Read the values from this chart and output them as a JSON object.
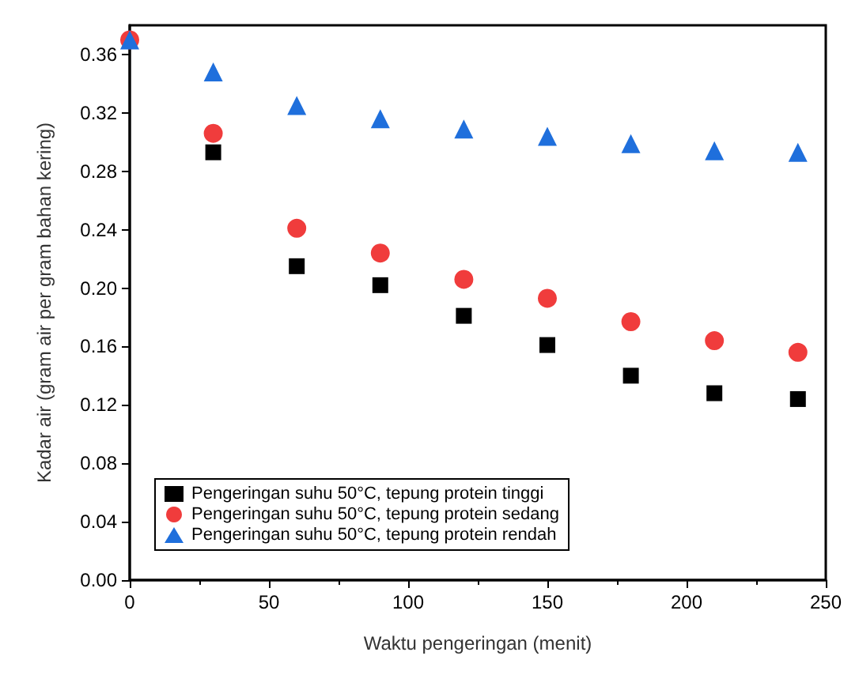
{
  "chart_data": {
    "type": "scatter",
    "xlabel": "Waktu pengeringan (menit)",
    "ylabel": "Kadar air (gram air per gram bahan kering)",
    "x": [
      0,
      30,
      60,
      90,
      120,
      150,
      180,
      210,
      240
    ],
    "series": [
      {
        "name": "Pengeringan suhu 50°C, tepung protein tinggi",
        "color": "#000000",
        "marker": "square",
        "values": [
          null,
          0.293,
          0.215,
          0.202,
          0.181,
          0.161,
          0.14,
          0.128,
          0.124
        ]
      },
      {
        "name": "Pengeringan suhu 50°C, tepung protein sedang",
        "color": "#f03c3c",
        "marker": "circle",
        "values": [
          0.37,
          0.306,
          0.241,
          0.224,
          0.206,
          0.193,
          0.177,
          0.164,
          0.156
        ]
      },
      {
        "name": "Pengeringan suhu 50°C, tepung protein rendah",
        "color": "#1f6fdc",
        "marker": "triangle",
        "values": [
          0.37,
          0.348,
          0.325,
          0.316,
          0.309,
          0.304,
          0.299,
          0.294,
          0.293
        ]
      }
    ],
    "xlim": [
      0,
      250
    ],
    "xticks": [
      0,
      50,
      100,
      150,
      200,
      250
    ],
    "ylim": [
      0,
      0.38
    ],
    "yticks": [
      {
        "value": 0,
        "label": "0.00"
      },
      0.04,
      0.08,
      0.12,
      0.16,
      {
        "value": 0.2,
        "label": "0.20"
      },
      0.24,
      0.28,
      0.32,
      0.36
    ],
    "grid": false,
    "legend": "bottom left"
  }
}
